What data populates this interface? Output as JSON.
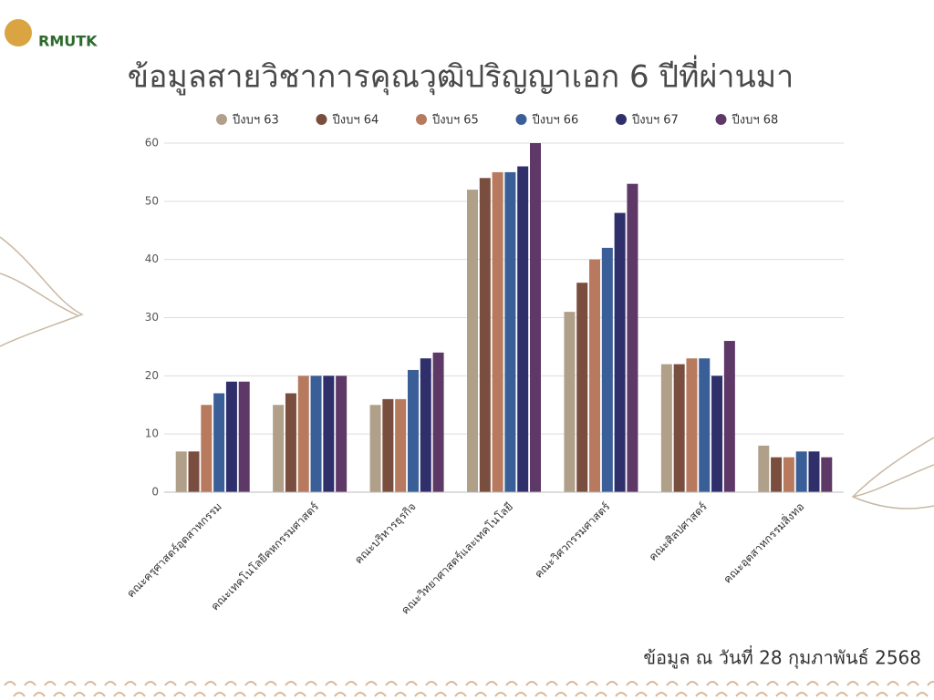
{
  "logo": "RMUTK",
  "chart_data": {
    "type": "bar",
    "title": "ข้อมูลสายวิชาการคุณวุฒิปริญญาเอก 6 ปีที่ผ่านมา",
    "note": "ข้อมูล ณ วันที่ 28 กุมภาพันธ์ 2568",
    "categories": [
      "คณะครุศาสตร์อุตสาหกรรม",
      "คณะเทคโนโลยีคหกรรมศาสตร์",
      "คณะบริหารธุรกิจ",
      "คณะวิทยาศาสตร์และเทคโนโลยี",
      "คณะวิศวกรรมศาสตร์",
      "คณะศิลปศาสตร์",
      "คณะอุตสาหกรรมสิ่งทอ"
    ],
    "series": [
      {
        "name": "ปีงบฯ 63",
        "color": "#b0a08a",
        "values": [
          7,
          15,
          15,
          52,
          31,
          22,
          8
        ]
      },
      {
        "name": "ปีงบฯ 64",
        "color": "#7a4e3e",
        "values": [
          7,
          17,
          16,
          54,
          36,
          22,
          6
        ]
      },
      {
        "name": "ปีงบฯ 65",
        "color": "#b87a5e",
        "values": [
          15,
          20,
          16,
          55,
          40,
          23,
          6
        ]
      },
      {
        "name": "ปีงบฯ 66",
        "color": "#3a5f98",
        "values": [
          17,
          20,
          21,
          55,
          42,
          23,
          7
        ]
      },
      {
        "name": "ปีงบฯ 67",
        "color": "#2e2f6b",
        "values": [
          19,
          20,
          23,
          56,
          48,
          20,
          7
        ]
      },
      {
        "name": "ปีงบฯ 68",
        "color": "#5e3866",
        "values": [
          19,
          20,
          24,
          60,
          53,
          26,
          6
        ]
      }
    ],
    "ylim": [
      0,
      60
    ],
    "yticks": [
      0,
      10,
      20,
      30,
      40,
      50,
      60
    ],
    "grid": true,
    "legend": "top"
  }
}
